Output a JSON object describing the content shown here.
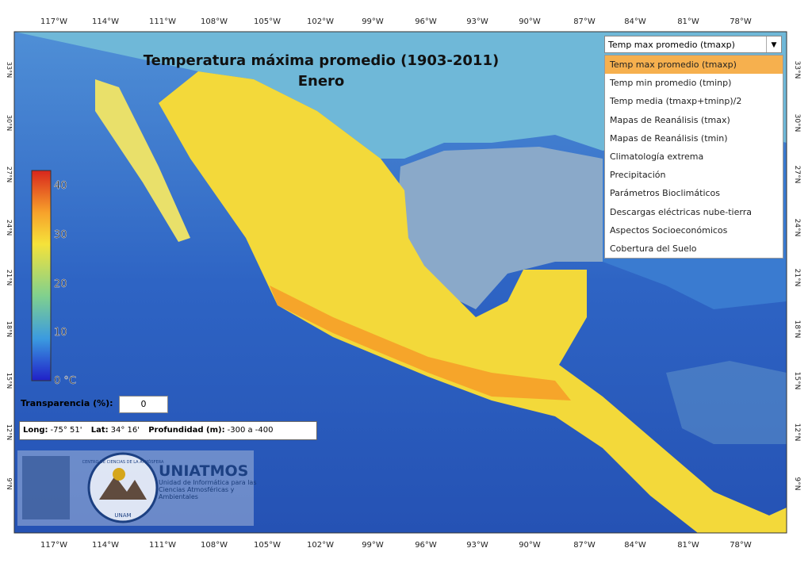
{
  "title": "Temperatura máxima promedio (1903-2011)",
  "subtitle": "Enero",
  "longitude_labels": [
    "117°W",
    "114°W",
    "111°W",
    "108°W",
    "105°W",
    "102°W",
    "99°W",
    "96°W",
    "93°W",
    "90°W",
    "87°W",
    "84°W",
    "81°W",
    "78°W"
  ],
  "latitude_labels": [
    "33°N",
    "30°N",
    "27°N",
    "24°N",
    "21°N",
    "18°N",
    "15°N",
    "12°N",
    "9°N"
  ],
  "colorbar": {
    "labels": [
      "40",
      "30",
      "20",
      "10",
      "0 °C"
    ]
  },
  "dropdown": {
    "selected": "Temp max promedio (tmaxp)",
    "options": [
      "Temp max promedio (tmaxp)",
      "Temp min promedio (tminp)",
      "Temp media (tmaxp+tminp)/2",
      "Mapas de Reanálisis (tmax)",
      "Mapas de Reanálisis (tmin)",
      "Climatología extrema",
      "Precipitación",
      "Parámetros Bioclimáticos",
      "Descargas eléctricas nube-tierra",
      "Aspectos Socioeconómicos",
      "Cobertura del Suelo"
    ]
  },
  "transparency": {
    "label": "Transparencia (%):",
    "value": "0"
  },
  "info": {
    "long_label": "Long:",
    "long_value": "-75° 51'",
    "lat_label": "Lat:",
    "lat_value": "34° 16'",
    "depth_label": "Profundidad (m):",
    "depth_value": "-300 a -400"
  },
  "logo": {
    "name": "UNIATMOS",
    "description": "Unidad de Informática para las Ciencias Atmosféricas y Ambientales",
    "ring_text": "CENTRO DE CIENCIAS DE LA ATMÓSFERA",
    "unam": "UNAM"
  }
}
